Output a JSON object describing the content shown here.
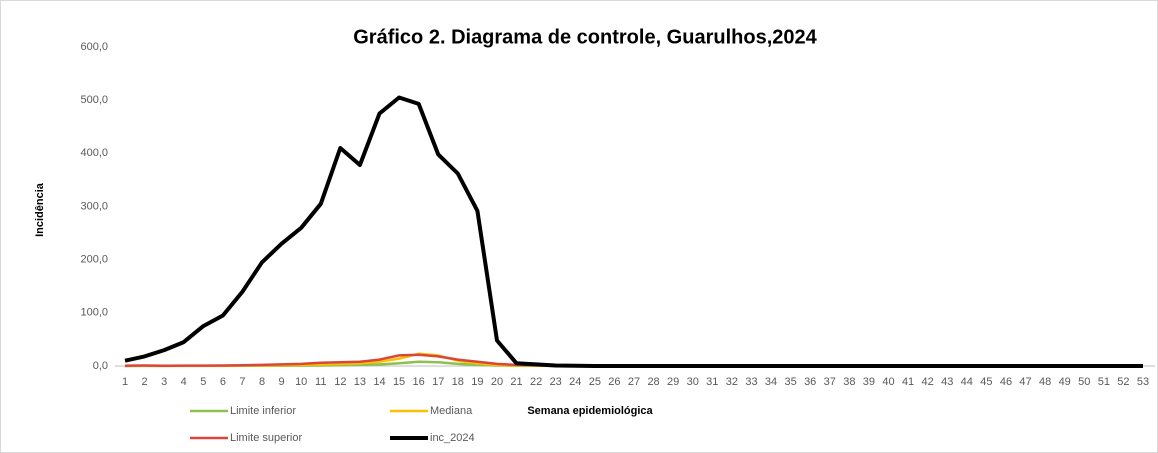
{
  "chart_data": {
    "type": "line",
    "title": "Gráfico 2. Diagrama de controle, Guarulhos,2024",
    "x_label": "Semana epidemiológica",
    "y_label": "Incidência",
    "categories": [
      "1",
      "2",
      "3",
      "4",
      "5",
      "6",
      "7",
      "8",
      "9",
      "10",
      "11",
      "12",
      "13",
      "14",
      "15",
      "16",
      "17",
      "18",
      "19",
      "20",
      "21",
      "22",
      "23",
      "24",
      "25",
      "26",
      "27",
      "28",
      "29",
      "30",
      "31",
      "32",
      "33",
      "34",
      "35",
      "36",
      "37",
      "38",
      "39",
      "40",
      "41",
      "42",
      "43",
      "44",
      "45",
      "46",
      "47",
      "48",
      "49",
      "50",
      "51",
      "52",
      "53"
    ],
    "ylim": [
      0,
      600
    ],
    "yticks": [
      {
        "value": 0,
        "label": "0,0"
      },
      {
        "value": 100,
        "label": "100,0"
      },
      {
        "value": 200,
        "label": "200,0"
      },
      {
        "value": 300,
        "label": "300,0"
      },
      {
        "value": 400,
        "label": "400,0"
      },
      {
        "value": 500,
        "label": "500,0"
      },
      {
        "value": 600,
        "label": "600,0"
      }
    ],
    "grid": false,
    "legend": "bottom",
    "series": [
      {
        "name": "Limite inferior",
        "color": "#8dc04f",
        "width": 2.5,
        "values": [
          0,
          0.1,
          0,
          0.1,
          0.1,
          0.2,
          0.3,
          0.4,
          0.6,
          0.8,
          1,
          1.5,
          2,
          3,
          5,
          8,
          7,
          4,
          2,
          1,
          0.5,
          0.3,
          0.1,
          0,
          0,
          0,
          0,
          0,
          0,
          0,
          0,
          0,
          0,
          0,
          0,
          0,
          0,
          0,
          0,
          0,
          0,
          0,
          0,
          0,
          0,
          0,
          0,
          0,
          0,
          0,
          0,
          0,
          0
        ]
      },
      {
        "name": "Mediana",
        "color": "#ffc000",
        "width": 2.5,
        "values": [
          0.3,
          0.5,
          0.3,
          0.5,
          0.4,
          0.6,
          0.8,
          1,
          1.5,
          2,
          3,
          4,
          5,
          8,
          14,
          23,
          20,
          10,
          5,
          2,
          1,
          0.6,
          0.4,
          0.3,
          0.1,
          0.1,
          0.1,
          0.1,
          0.1,
          0.1,
          0.1,
          0.1,
          0.1,
          0.1,
          0.1,
          0.1,
          0.1,
          0.1,
          0.1,
          0.1,
          0.1,
          0.1,
          0.1,
          0.1,
          0.1,
          0.1,
          0.1,
          0.1,
          0.1,
          0.1,
          0.1,
          0.1,
          0.1
        ]
      },
      {
        "name": "Limite superior",
        "color": "#d9473b",
        "width": 2.5,
        "values": [
          0.5,
          0.9,
          0.5,
          0.8,
          0.7,
          1,
          1.5,
          2,
          3,
          4,
          6,
          7,
          8,
          12,
          20,
          21,
          18,
          12,
          8,
          4,
          2,
          1.5,
          0.8,
          0.5,
          0.3,
          0.3,
          0.3,
          0.3,
          0.3,
          0.3,
          0.3,
          0.3,
          0.3,
          0.3,
          0.3,
          0.3,
          0.3,
          0.3,
          0.3,
          0.3,
          0.3,
          0.3,
          0.3,
          0.3,
          0.3,
          0.3,
          0.3,
          0.3,
          0.3,
          0.3,
          0.3,
          0.3,
          0.3
        ]
      },
      {
        "name": "inc_2024",
        "color": "#000000",
        "width": 4,
        "values": [
          10,
          18,
          30,
          45,
          75,
          95,
          140,
          195,
          230,
          260,
          305,
          410,
          378,
          475,
          505,
          493,
          398,
          362,
          292,
          48,
          5,
          3,
          1,
          0.5,
          0,
          0,
          0,
          0,
          0,
          0,
          0,
          0,
          0,
          0,
          0,
          0,
          0,
          0,
          0,
          0,
          0,
          0,
          0,
          0,
          0,
          0,
          0,
          0,
          0,
          0,
          0,
          0,
          0
        ]
      }
    ]
  }
}
